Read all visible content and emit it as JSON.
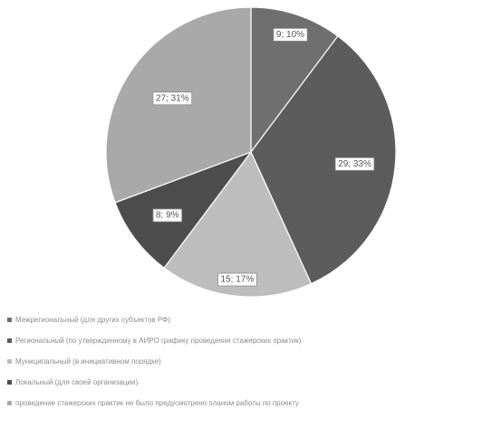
{
  "chart_data": {
    "type": "pie",
    "title": "",
    "start_angle_deg": 0,
    "direction": "clockwise",
    "legend_position": "bottom",
    "slices": [
      {
        "value": 9,
        "label": "9; 10%",
        "color": "#6f6f6f",
        "legend": "Межрегиональный (для других субъектов РФ)"
      },
      {
        "value": 29,
        "label": "29; 33%",
        "color": "#5c5c5c",
        "legend": "Региональный (по утвержденному в АИРО графику проведения стажерских практик)"
      },
      {
        "value": 15,
        "label": "15; 17%",
        "color": "#bdbdbd",
        "legend": "Муниципальный (в инициативном порядке)"
      },
      {
        "value": 8,
        "label": "8; 9%",
        "color": "#4d4d4d",
        "legend": "Локальный (для своей организации)"
      },
      {
        "value": 27,
        "label": "27; 31%",
        "color": "#a9a9a9",
        "legend": "проведение стажерских практик не было предусмотрено планом работы по проекту"
      }
    ]
  }
}
